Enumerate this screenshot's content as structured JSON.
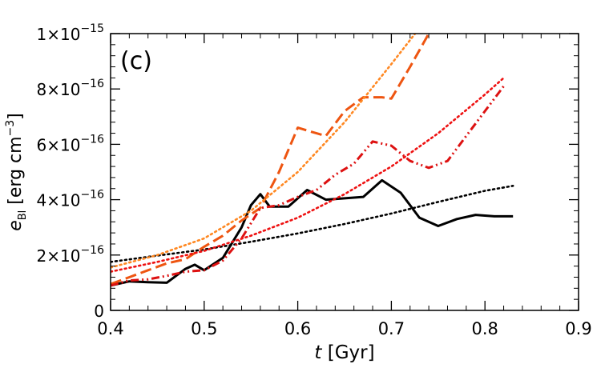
{
  "chart_data": {
    "type": "line",
    "panel_label": "(c)",
    "title": "",
    "xlabel": {
      "var": "t",
      "unit": " [Gyr]"
    },
    "ylabel": {
      "var": "e",
      "sub": "Bl",
      "unit_pre": " [erg cm",
      "unit_exp": "−3",
      "unit_post": "]"
    },
    "xlim": [
      0.4,
      0.9
    ],
    "ylim": [
      0,
      1e-15
    ],
    "x_ticks": [
      {
        "value": 0.4,
        "label": "0.4"
      },
      {
        "value": 0.5,
        "label": "0.5"
      },
      {
        "value": 0.6,
        "label": "0.6"
      },
      {
        "value": 0.7,
        "label": "0.7"
      },
      {
        "value": 0.8,
        "label": "0.8"
      },
      {
        "value": 0.9,
        "label": "0.9"
      }
    ],
    "y_ticks": [
      {
        "value": 0,
        "label": "0",
        "exp": ""
      },
      {
        "value": 2e-16,
        "label": "2×10",
        "exp": "−16"
      },
      {
        "value": 4e-16,
        "label": "4×10",
        "exp": "−16"
      },
      {
        "value": 6e-16,
        "label": "6×10",
        "exp": "−16"
      },
      {
        "value": 8e-16,
        "label": "8×10",
        "exp": "−16"
      },
      {
        "value": 1e-15,
        "label": "1×10",
        "exp": "−15"
      }
    ],
    "series": [
      {
        "name": "black-solid",
        "color": "#000000",
        "style": "solid",
        "x": [
          0.4,
          0.42,
          0.44,
          0.46,
          0.48,
          0.49,
          0.5,
          0.52,
          0.54,
          0.55,
          0.56,
          0.57,
          0.59,
          0.61,
          0.63,
          0.65,
          0.67,
          0.69,
          0.71,
          0.73,
          0.75,
          0.77,
          0.79,
          0.81,
          0.83
        ],
        "y": [
          9e-17,
          1.05e-16,
          1.02e-16,
          1e-16,
          1.5e-16,
          1.65e-16,
          1.45e-16,
          1.9e-16,
          3e-16,
          3.8e-16,
          4.2e-16,
          3.75e-16,
          3.75e-16,
          4.35e-16,
          4e-16,
          4.05e-16,
          4.1e-16,
          4.7e-16,
          4.25e-16,
          3.35e-16,
          3.05e-16,
          3.3e-16,
          3.45e-16,
          3.4e-16,
          3.4e-16
        ]
      },
      {
        "name": "black-dotted-fit",
        "color": "#000000",
        "style": "dotted",
        "x": [
          0.4,
          0.45,
          0.5,
          0.55,
          0.6,
          0.65,
          0.7,
          0.75,
          0.8,
          0.83
        ],
        "y": [
          1.75e-16,
          1.98e-16,
          2.2e-16,
          2.48e-16,
          2.78e-16,
          3.12e-16,
          3.5e-16,
          3.92e-16,
          4.32e-16,
          4.5e-16
        ]
      },
      {
        "name": "orange-dashed",
        "color": "#ee5511",
        "style": "dashed",
        "x": [
          0.4,
          0.42,
          0.44,
          0.46,
          0.48,
          0.5,
          0.52,
          0.54,
          0.56,
          0.58,
          0.6,
          0.62,
          0.63,
          0.65,
          0.67,
          0.69,
          0.7,
          0.72,
          0.74
        ],
        "y": [
          9.5e-17,
          1.2e-16,
          1.45e-16,
          1.7e-16,
          1.85e-16,
          2.3e-16,
          2.7e-16,
          3.25e-16,
          3.7e-16,
          5e-16,
          6.6e-16,
          6.4e-16,
          6.3e-16,
          7.2e-16,
          7.7e-16,
          7.7e-16,
          7.65e-16,
          8.8e-16,
          1e-15
        ]
      },
      {
        "name": "orange-dotted-fit",
        "color": "#ff8822",
        "style": "dotted",
        "x": [
          0.4,
          0.45,
          0.5,
          0.55,
          0.6,
          0.65,
          0.7,
          0.73
        ],
        "y": [
          1.55e-16,
          2e-16,
          2.6e-16,
          3.6e-16,
          5e-16,
          6.8e-16,
          8.9e-16,
          1.02e-15
        ]
      },
      {
        "name": "red-dash-dot",
        "color": "#dd1111",
        "style": "dashdotdot",
        "x": [
          0.4,
          0.42,
          0.44,
          0.46,
          0.48,
          0.5,
          0.52,
          0.54,
          0.56,
          0.58,
          0.6,
          0.62,
          0.64,
          0.66,
          0.68,
          0.7,
          0.72,
          0.74,
          0.76,
          0.78,
          0.8,
          0.82
        ],
        "y": [
          9e-17,
          1.08e-16,
          1.12e-16,
          1.25e-16,
          1.4e-16,
          1.45e-16,
          1.8e-16,
          2.6e-16,
          3.7e-16,
          3.8e-16,
          4.1e-16,
          4.35e-16,
          4.9e-16,
          5.3e-16,
          6.1e-16,
          5.95e-16,
          5.4e-16,
          5.15e-16,
          5.4e-16,
          6.3e-16,
          7.2e-16,
          8.1e-16
        ]
      },
      {
        "name": "red-dotted-fit",
        "color": "#ee1111",
        "style": "dotted",
        "x": [
          0.4,
          0.45,
          0.5,
          0.55,
          0.6,
          0.65,
          0.7,
          0.75,
          0.8,
          0.82
        ],
        "y": [
          1.4e-16,
          1.75e-16,
          2.15e-16,
          2.7e-16,
          3.35e-16,
          4.2e-16,
          5.2e-16,
          6.4e-16,
          7.8e-16,
          8.4e-16
        ]
      }
    ]
  }
}
